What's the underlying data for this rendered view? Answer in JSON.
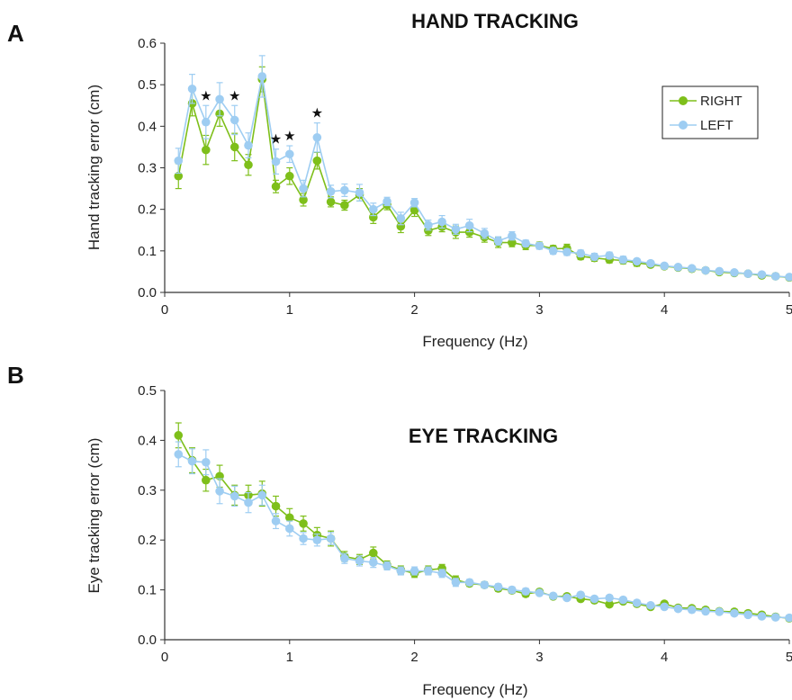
{
  "colors": {
    "right": "#7ebf1a",
    "left": "#9ecdf2",
    "axis": "#333333"
  },
  "legend": {
    "placement": "top-right of panel A",
    "labels": [
      "RIGHT",
      "LEFT"
    ]
  },
  "panels": [
    {
      "letter": "A"
    },
    {
      "letter": "B"
    }
  ],
  "chart_data": [
    {
      "type": "line",
      "title": "HAND TRACKING",
      "xlabel": "Frequency (Hz)",
      "ylabel": "Hand tracking error (cm)",
      "xlim": [
        0,
        5
      ],
      "ylim": [
        0,
        0.6
      ],
      "xticks": [
        0,
        1,
        2,
        3,
        4,
        5
      ],
      "yticks": [
        0.0,
        0.1,
        0.2,
        0.3,
        0.4,
        0.5,
        0.6
      ],
      "ytick_labels": [
        "0.0",
        "0.1",
        "0.2",
        "0.3",
        "0.4",
        "0.5",
        "0.6"
      ],
      "grid": false,
      "significance_marker": "★",
      "significant_x": [
        0.33,
        0.56,
        0.89,
        1.0,
        1.22
      ],
      "x": [
        0.11,
        0.22,
        0.33,
        0.44,
        0.56,
        0.67,
        0.78,
        0.89,
        1.0,
        1.11,
        1.22,
        1.33,
        1.44,
        1.56,
        1.67,
        1.78,
        1.89,
        2.0,
        2.11,
        2.22,
        2.33,
        2.44,
        2.56,
        2.67,
        2.78,
        2.89,
        3.0,
        3.11,
        3.22,
        3.33,
        3.44,
        3.56,
        3.67,
        3.78,
        3.89,
        4.0,
        4.11,
        4.22,
        4.33,
        4.44,
        4.56,
        4.67,
        4.78,
        4.89,
        5.0
      ],
      "series": [
        {
          "name": "RIGHT",
          "values": [
            0.28,
            0.455,
            0.343,
            0.43,
            0.35,
            0.307,
            0.513,
            0.255,
            0.28,
            0.223,
            0.317,
            0.218,
            0.21,
            0.235,
            0.181,
            0.211,
            0.159,
            0.198,
            0.149,
            0.158,
            0.145,
            0.145,
            0.133,
            0.12,
            0.12,
            0.113,
            0.113,
            0.105,
            0.106,
            0.087,
            0.083,
            0.079,
            0.077,
            0.071,
            0.067,
            0.063,
            0.06,
            0.057,
            0.053,
            0.049,
            0.047,
            0.045,
            0.041,
            0.039,
            0.036
          ],
          "err": [
            0.03,
            0.03,
            0.035,
            0.03,
            0.033,
            0.025,
            0.03,
            0.015,
            0.02,
            0.015,
            0.02,
            0.012,
            0.012,
            0.015,
            0.015,
            0.012,
            0.015,
            0.015,
            0.012,
            0.012,
            0.015,
            0.012,
            0.012,
            0.012,
            0.01,
            0.01,
            0.008,
            0.008,
            0.01,
            0.008,
            0.008,
            0.008,
            0.008,
            0.008,
            0.006,
            0.006,
            0.006,
            0.006,
            0.005,
            0.005,
            0.005,
            0.005,
            0.005,
            0.005,
            0.005
          ]
        },
        {
          "name": "LEFT",
          "values": [
            0.317,
            0.49,
            0.41,
            0.465,
            0.415,
            0.354,
            0.52,
            0.315,
            0.333,
            0.25,
            0.373,
            0.243,
            0.246,
            0.24,
            0.2,
            0.219,
            0.178,
            0.216,
            0.162,
            0.17,
            0.152,
            0.161,
            0.142,
            0.124,
            0.136,
            0.118,
            0.112,
            0.1,
            0.097,
            0.094,
            0.086,
            0.089,
            0.079,
            0.075,
            0.07,
            0.064,
            0.061,
            0.058,
            0.053,
            0.051,
            0.048,
            0.045,
            0.043,
            0.039,
            0.037
          ],
          "err": [
            0.03,
            0.035,
            0.04,
            0.04,
            0.035,
            0.03,
            0.05,
            0.03,
            0.02,
            0.02,
            0.035,
            0.015,
            0.015,
            0.02,
            0.015,
            0.01,
            0.015,
            0.01,
            0.012,
            0.015,
            0.012,
            0.015,
            0.012,
            0.01,
            0.01,
            0.008,
            0.008,
            0.008,
            0.008,
            0.008,
            0.008,
            0.008,
            0.008,
            0.006,
            0.006,
            0.006,
            0.006,
            0.005,
            0.005,
            0.005,
            0.005,
            0.005,
            0.005,
            0.005,
            0.005
          ]
        }
      ]
    },
    {
      "type": "line",
      "title": "EYE TRACKING",
      "xlabel": "Frequency (Hz)",
      "ylabel": "Eye tracking error (cm)",
      "xlim": [
        0,
        5
      ],
      "ylim": [
        0,
        0.5
      ],
      "xticks": [
        0,
        1,
        2,
        3,
        4,
        5
      ],
      "yticks": [
        0.0,
        0.1,
        0.2,
        0.3,
        0.4,
        0.5
      ],
      "ytick_labels": [
        "0.0",
        "0.1",
        "0.2",
        "0.3",
        "0.4",
        "0.5"
      ],
      "grid": false,
      "x": [
        0.11,
        0.22,
        0.33,
        0.44,
        0.56,
        0.67,
        0.78,
        0.89,
        1.0,
        1.11,
        1.22,
        1.33,
        1.44,
        1.56,
        1.67,
        1.78,
        1.89,
        2.0,
        2.11,
        2.22,
        2.33,
        2.44,
        2.56,
        2.67,
        2.78,
        2.89,
        3.0,
        3.11,
        3.22,
        3.33,
        3.44,
        3.56,
        3.67,
        3.78,
        3.89,
        4.0,
        4.11,
        4.22,
        4.33,
        4.44,
        4.56,
        4.67,
        4.78,
        4.89,
        5.0
      ],
      "series": [
        {
          "name": "RIGHT",
          "values": [
            0.41,
            0.36,
            0.32,
            0.328,
            0.29,
            0.29,
            0.293,
            0.268,
            0.245,
            0.233,
            0.21,
            0.203,
            0.167,
            0.161,
            0.174,
            0.15,
            0.14,
            0.133,
            0.14,
            0.143,
            0.12,
            0.113,
            0.11,
            0.103,
            0.099,
            0.092,
            0.096,
            0.087,
            0.087,
            0.082,
            0.079,
            0.071,
            0.077,
            0.072,
            0.066,
            0.072,
            0.064,
            0.063,
            0.06,
            0.057,
            0.056,
            0.053,
            0.05,
            0.046,
            0.043
          ],
          "err": [
            0.025,
            0.025,
            0.022,
            0.022,
            0.02,
            0.02,
            0.025,
            0.02,
            0.018,
            0.015,
            0.015,
            0.015,
            0.01,
            0.01,
            0.012,
            0.008,
            0.008,
            0.008,
            0.008,
            0.008,
            0.008,
            0.006,
            0.006,
            0.006,
            0.006,
            0.006,
            0.005,
            0.005,
            0.005,
            0.005,
            0.005,
            0.005,
            0.005,
            0.005,
            0.005,
            0.005,
            0.005,
            0.005,
            0.005,
            0.005,
            0.005,
            0.005,
            0.005,
            0.005,
            0.005
          ]
        },
        {
          "name": "LEFT",
          "values": [
            0.372,
            0.358,
            0.356,
            0.298,
            0.288,
            0.275,
            0.29,
            0.238,
            0.223,
            0.203,
            0.2,
            0.203,
            0.163,
            0.158,
            0.155,
            0.148,
            0.138,
            0.138,
            0.138,
            0.133,
            0.115,
            0.115,
            0.11,
            0.106,
            0.1,
            0.097,
            0.094,
            0.088,
            0.084,
            0.09,
            0.082,
            0.084,
            0.08,
            0.074,
            0.069,
            0.066,
            0.062,
            0.06,
            0.057,
            0.056,
            0.053,
            0.05,
            0.047,
            0.045,
            0.044
          ],
          "err": [
            0.025,
            0.025,
            0.025,
            0.025,
            0.02,
            0.02,
            0.02,
            0.015,
            0.015,
            0.012,
            0.012,
            0.012,
            0.01,
            0.01,
            0.01,
            0.008,
            0.008,
            0.008,
            0.008,
            0.008,
            0.008,
            0.006,
            0.006,
            0.006,
            0.006,
            0.006,
            0.005,
            0.005,
            0.005,
            0.005,
            0.005,
            0.005,
            0.005,
            0.005,
            0.005,
            0.005,
            0.005,
            0.005,
            0.005,
            0.005,
            0.005,
            0.005,
            0.005,
            0.005,
            0.005
          ]
        }
      ]
    }
  ]
}
